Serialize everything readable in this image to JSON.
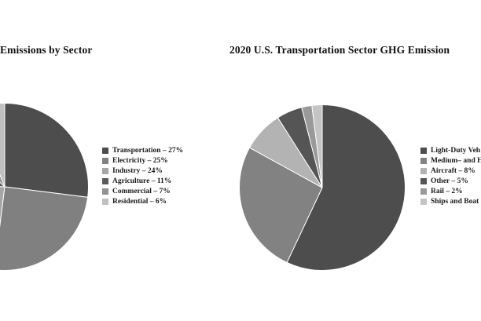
{
  "page": {
    "background": "#ffffff"
  },
  "chart_data": [
    {
      "type": "pie",
      "title": "Emissions by Sector",
      "categories": [
        "Transportation",
        "Electricity",
        "Industry",
        "Agriculture",
        "Commercial",
        "Residential"
      ],
      "values": [
        27,
        25,
        24,
        11,
        7,
        6
      ],
      "unit": "%",
      "colors": [
        "#4d4d4d",
        "#808080",
        "#a6a6a6",
        "#5a5a5a",
        "#919191",
        "#c0c0c0"
      ],
      "legend_position": "right",
      "legend_labels": [
        "Transportation – 27%",
        "Electricity – 25%",
        "Industry – 24%",
        "Agriculture – 11%",
        "Commercial – 7%",
        "Residential – 6%"
      ]
    },
    {
      "type": "pie",
      "title": "2020 U.S. Transportation Sector GHG Emission",
      "categories": [
        "Light-Duty Veh",
        "Medium– and H",
        "Aircraft",
        "Other",
        "Rail",
        "Ships and Boat"
      ],
      "values": [
        57,
        26,
        8,
        5,
        2,
        2
      ],
      "unit": "%",
      "colors": [
        "#4d4d4d",
        "#828282",
        "#b3b3b3",
        "#555555",
        "#999999",
        "#c4c4c4"
      ],
      "legend_position": "right",
      "legend_labels": [
        "Light-Duty Veh",
        "Medium– and H",
        "Aircraft – 8%",
        "Other – 5%",
        "Rail – 2%",
        "Ships and Boat"
      ]
    }
  ]
}
